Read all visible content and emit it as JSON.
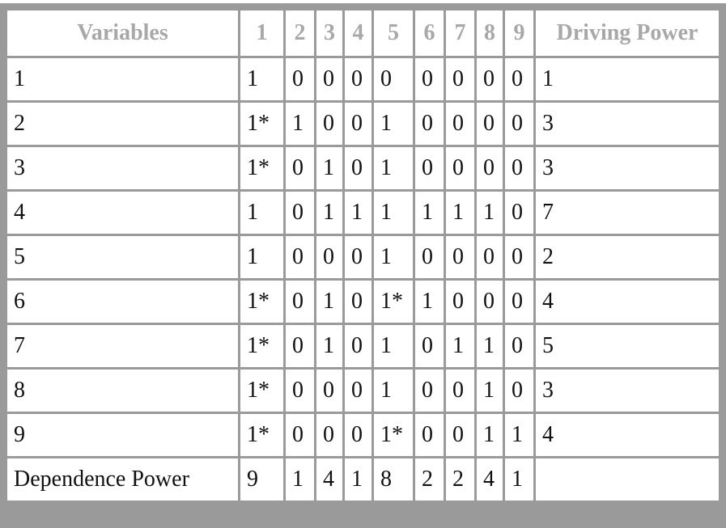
{
  "header": [
    "Variables",
    "1",
    "2",
    "3",
    "4",
    "5",
    "6",
    "7",
    "8",
    "9",
    "Driving Power"
  ],
  "rows": [
    [
      "1",
      "1",
      "0",
      "0",
      "0",
      "0",
      "0",
      "0",
      "0",
      "0",
      "1"
    ],
    [
      "2",
      "1*",
      "1",
      "0",
      "0",
      "1",
      "0",
      "0",
      "0",
      "0",
      "3"
    ],
    [
      "3",
      "1*",
      "0",
      "1",
      "0",
      "1",
      "0",
      "0",
      "0",
      "0",
      "3"
    ],
    [
      "4",
      "1",
      "0",
      "1",
      "1",
      "1",
      "1",
      "1",
      "1",
      "0",
      "7"
    ],
    [
      "5",
      "1",
      "0",
      "0",
      "0",
      "1",
      "0",
      "0",
      "0",
      "0",
      "2"
    ],
    [
      "6",
      "1*",
      "0",
      "1",
      "0",
      "1*",
      "1",
      "0",
      "0",
      "0",
      "4"
    ],
    [
      "7",
      "1*",
      "0",
      "1",
      "0",
      "1",
      "0",
      "1",
      "1",
      "0",
      "5"
    ],
    [
      "8",
      "1*",
      "0",
      "0",
      "0",
      "1",
      "0",
      "0",
      "1",
      "0",
      "3"
    ],
    [
      "9",
      "1*",
      "0",
      "0",
      "0",
      "1*",
      "0",
      "0",
      "1",
      "1",
      "4"
    ],
    [
      "Dependence Power",
      "9",
      "1",
      "4",
      "1",
      "8",
      "2",
      "2",
      "4",
      "1",
      ""
    ]
  ]
}
